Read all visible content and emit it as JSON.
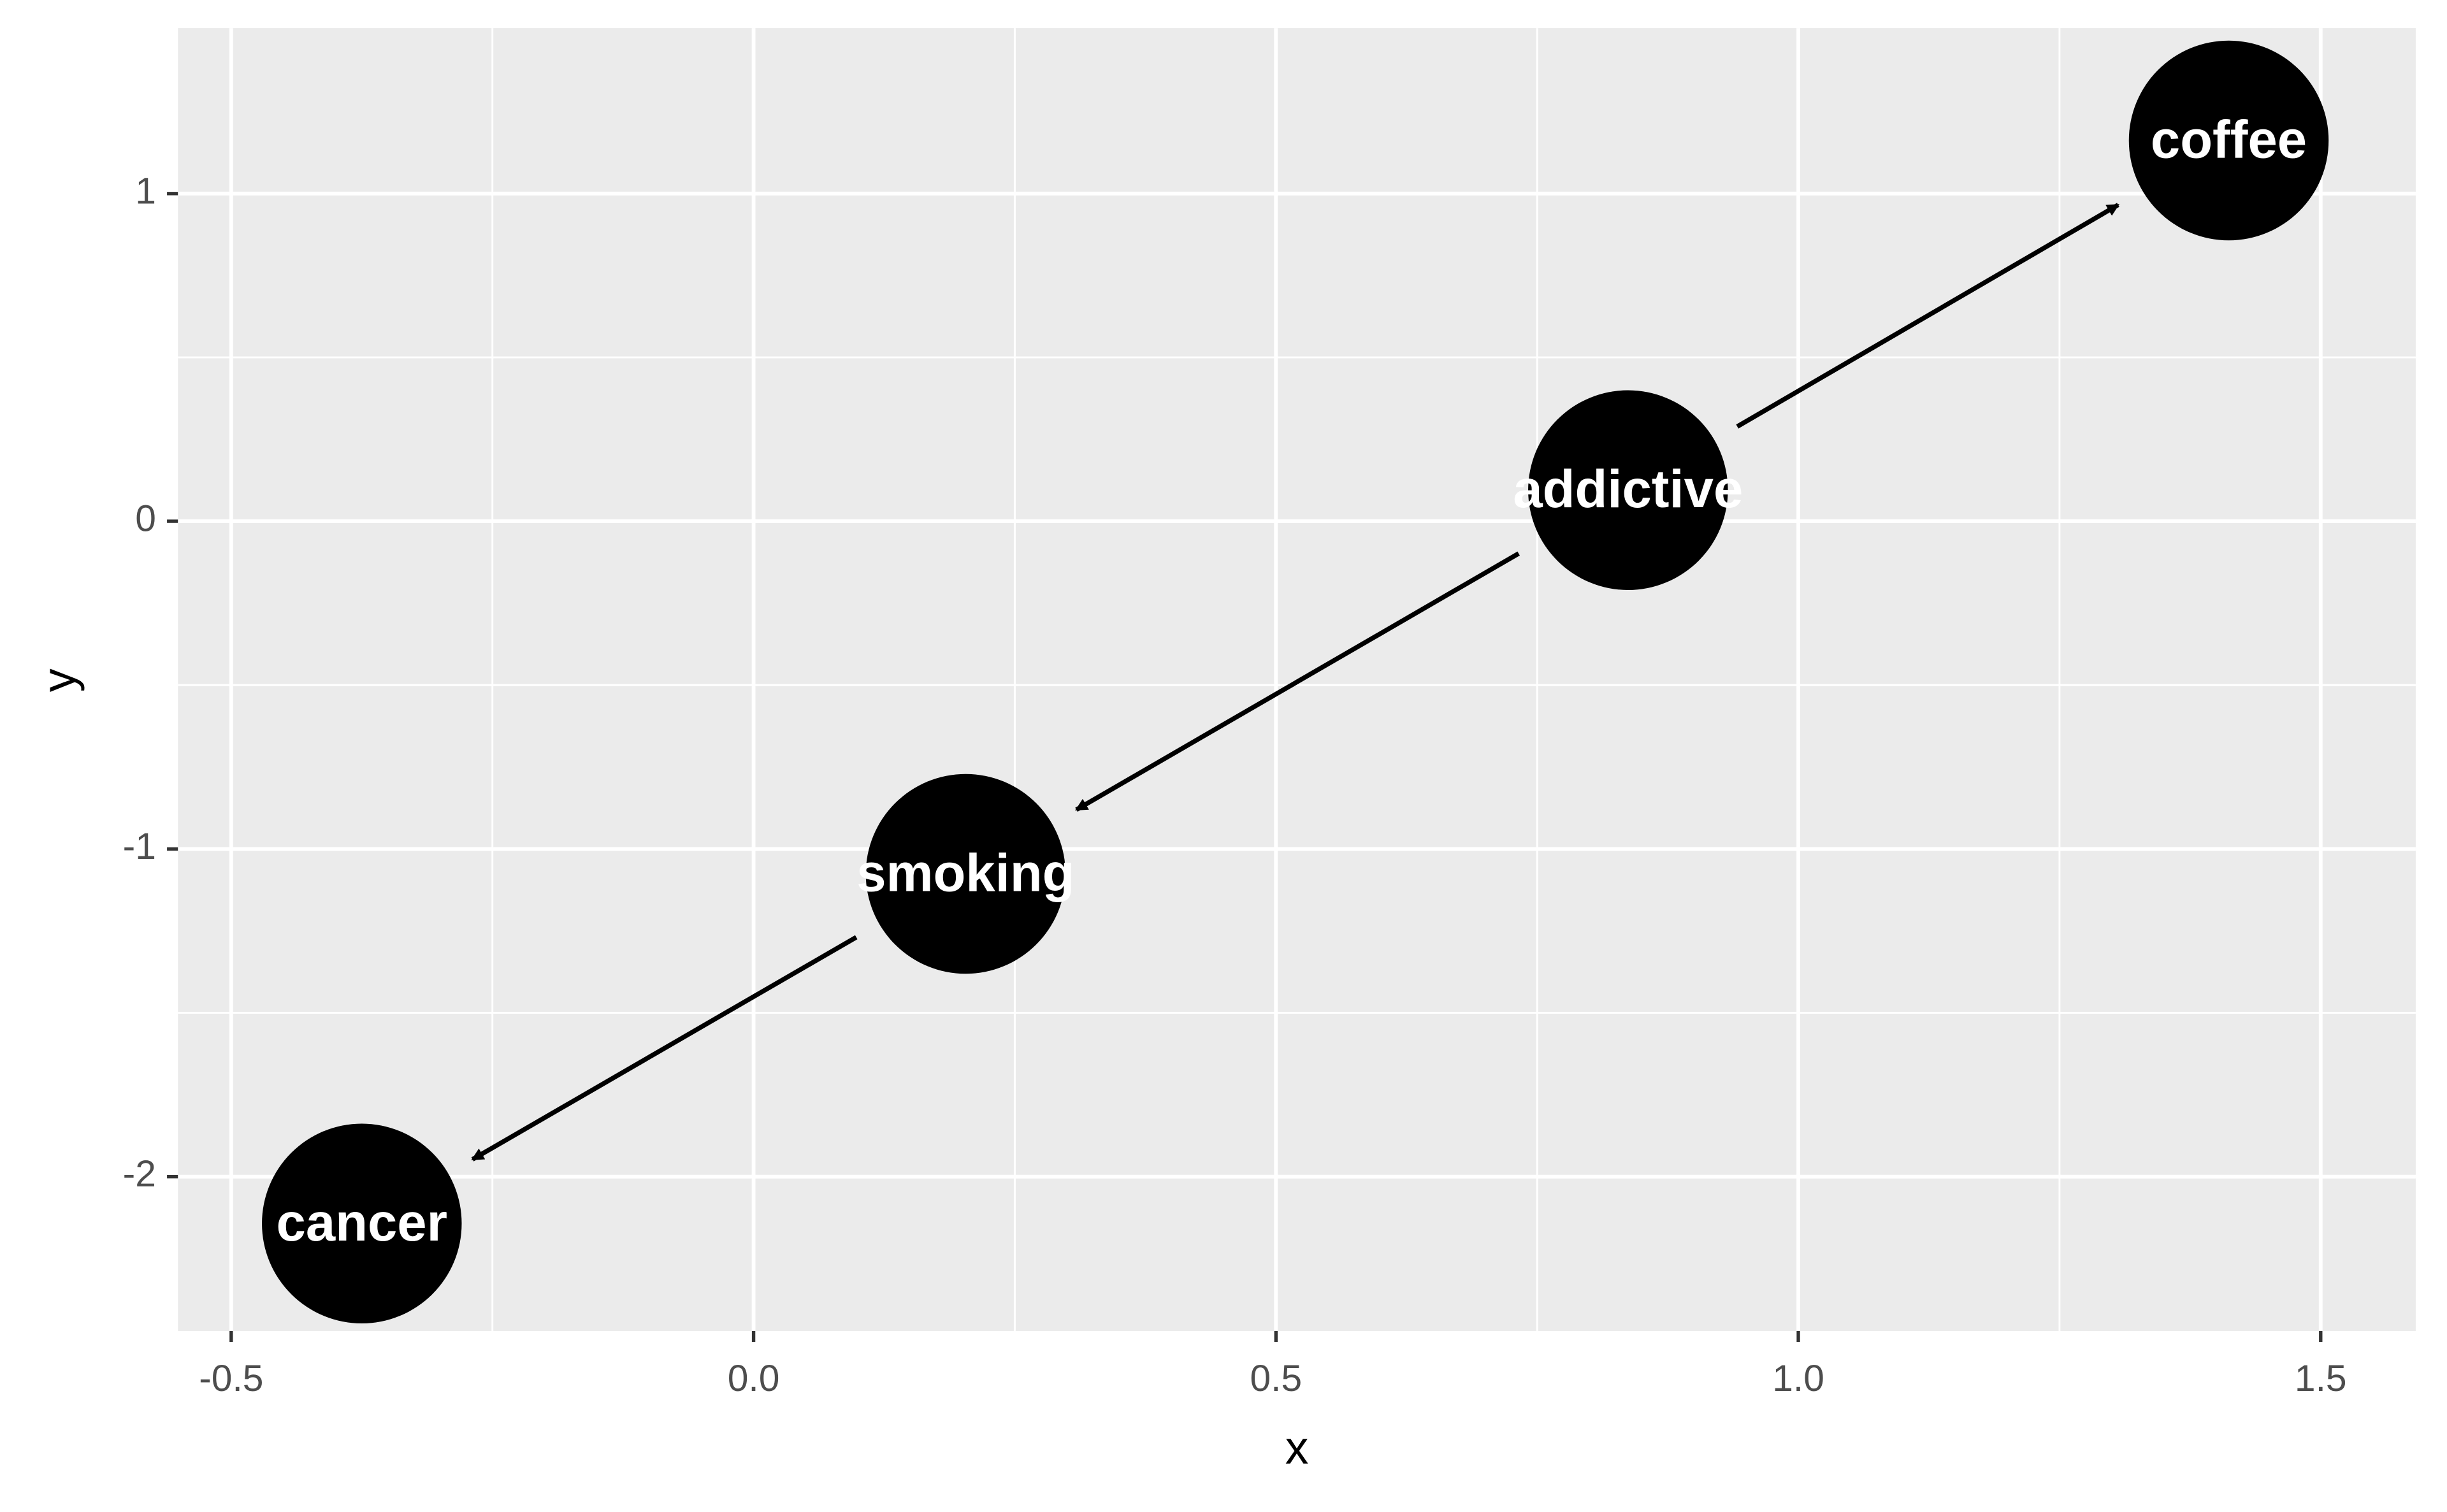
{
  "chart_data": {
    "type": "dag",
    "x_label": "x",
    "y_label": "y",
    "nodes": [
      {
        "label": "coffee",
        "x": 1.412,
        "y": 1.162
      },
      {
        "label": "addictive",
        "x": 0.837,
        "y": 0.095
      },
      {
        "label": "smoking",
        "x": 0.203,
        "y": -1.076
      },
      {
        "label": "cancer",
        "x": -0.375,
        "y": -2.143
      }
    ],
    "edges": [
      {
        "from": 1,
        "to": 0
      },
      {
        "from": 1,
        "to": 2
      },
      {
        "from": 2,
        "to": 3
      }
    ],
    "node_color": "#000000",
    "edge_color": "#000000",
    "panel_color": "#ebebeb",
    "grid": true,
    "xlim": [
      -0.551,
      1.591
    ],
    "ylim": [
      -2.471,
      1.505
    ],
    "xticks": [
      -0.5,
      {
        "value": 0,
        "label": "0.0"
      },
      0.5,
      {
        "value": 1,
        "label": "1.0"
      },
      1.5
    ],
    "yticks": [
      1,
      0,
      -1,
      -2
    ]
  }
}
